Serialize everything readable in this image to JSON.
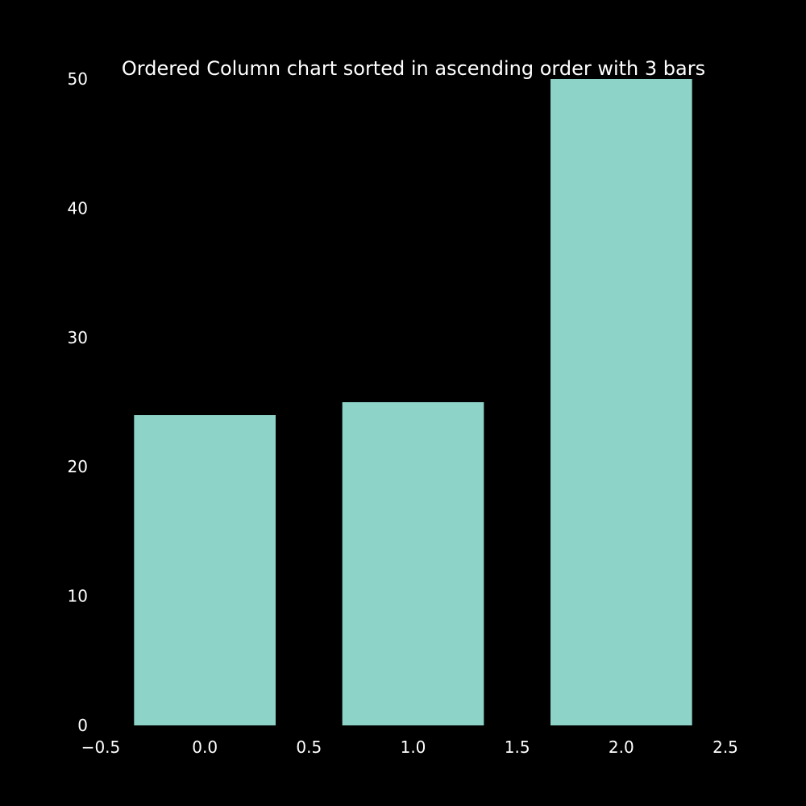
{
  "chart_data": {
    "type": "bar",
    "title": "Ordered Column chart sorted in ascending order with 3 bars",
    "xlabel": "",
    "ylabel": "",
    "x": [
      0,
      1,
      2
    ],
    "values": [
      24,
      25,
      50
    ],
    "bar_width": 0.68,
    "xlim": [
      -0.5,
      2.5
    ],
    "ylim": [
      0,
      50
    ],
    "xticks": [
      "−0.5",
      "0.0",
      "0.5",
      "1.0",
      "1.5",
      "2.0",
      "2.5"
    ],
    "xtick_values": [
      -0.5,
      0.0,
      0.5,
      1.0,
      1.5,
      2.0,
      2.5
    ],
    "yticks": [
      "0",
      "10",
      "20",
      "30",
      "40",
      "50"
    ],
    "ytick_values": [
      0,
      10,
      20,
      30,
      40,
      50
    ],
    "grid": false,
    "legend": "none",
    "colors": {
      "background": "#000000",
      "bar": "#8dd3c7",
      "text": "#ffffff"
    }
  }
}
